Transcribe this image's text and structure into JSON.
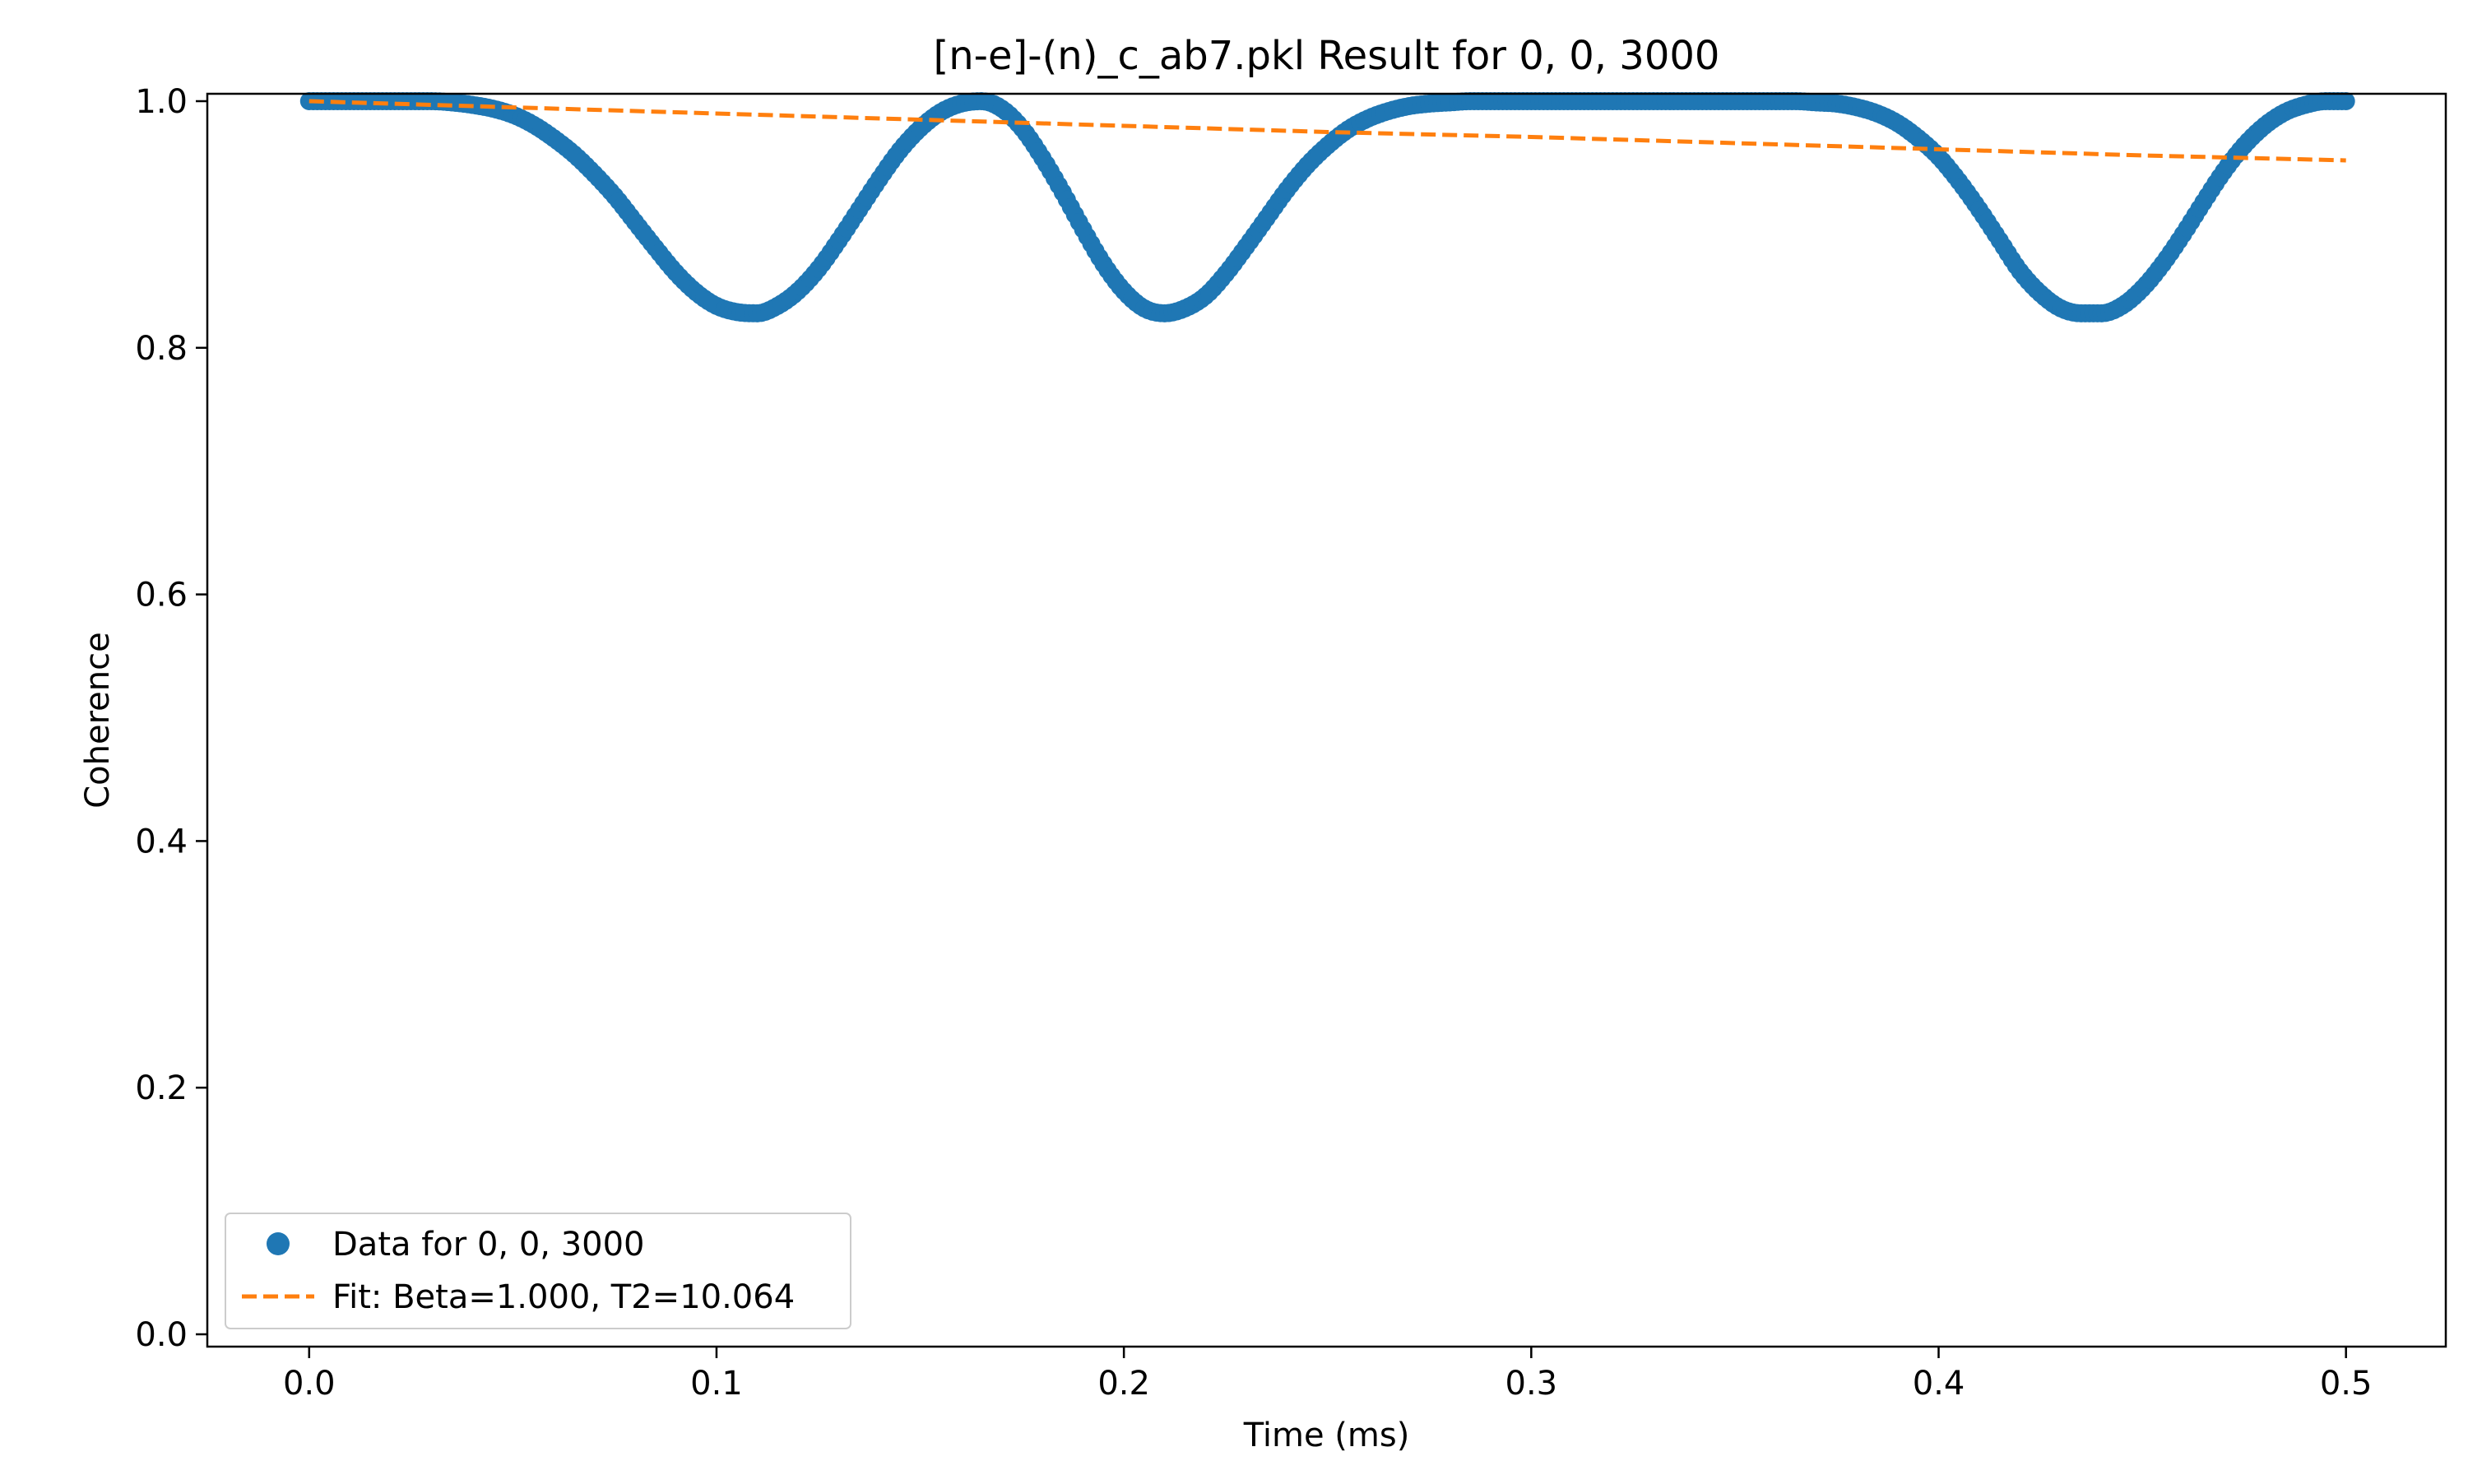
{
  "chart_data": {
    "type": "scatter",
    "title": "[n-e]-(n)_c_ab7.pkl Result for 0, 0, 3000",
    "xlabel": "Time (ms)",
    "ylabel": "Coherence",
    "xlim": [
      -0.025,
      0.5245
    ],
    "ylim": [
      -0.01,
      1.006
    ],
    "xticks": [
      0.0,
      0.1,
      0.2,
      0.3,
      0.4,
      0.5
    ],
    "xtick_labels": [
      "0.0",
      "0.1",
      "0.2",
      "0.3",
      "0.4",
      "0.5"
    ],
    "yticks": [
      0.0,
      0.2,
      0.4,
      0.6,
      0.8,
      1.0
    ],
    "ytick_labels": [
      "0.0",
      "0.2",
      "0.4",
      "0.6",
      "0.8",
      "1.0"
    ],
    "grid": false,
    "legend_position": "lower-left",
    "series": [
      {
        "name": "Data for 0, 0, 3000",
        "kind": "scatter",
        "color": "#1f77b4",
        "x": [
          0.0,
          0.005,
          0.01,
          0.015,
          0.02,
          0.025,
          0.03,
          0.035,
          0.04,
          0.045,
          0.05,
          0.055,
          0.06,
          0.065,
          0.07,
          0.075,
          0.08,
          0.085,
          0.09,
          0.095,
          0.1,
          0.105,
          0.11,
          0.115,
          0.12,
          0.125,
          0.13,
          0.135,
          0.14,
          0.145,
          0.15,
          0.155,
          0.16,
          0.165,
          0.17,
          0.175,
          0.18,
          0.185,
          0.19,
          0.195,
          0.2,
          0.205,
          0.21,
          0.215,
          0.22,
          0.225,
          0.23,
          0.235,
          0.24,
          0.245,
          0.25,
          0.255,
          0.26,
          0.265,
          0.27,
          0.275,
          0.28,
          0.285,
          0.29,
          0.295,
          0.3,
          0.305,
          0.31,
          0.315,
          0.32,
          0.325,
          0.33,
          0.335,
          0.34,
          0.345,
          0.35,
          0.355,
          0.36,
          0.365,
          0.37,
          0.375,
          0.38,
          0.385,
          0.39,
          0.395,
          0.4,
          0.405,
          0.41,
          0.415,
          0.42,
          0.425,
          0.43,
          0.435,
          0.44,
          0.445,
          0.45,
          0.455,
          0.46,
          0.465,
          0.47,
          0.475,
          0.48,
          0.485,
          0.49,
          0.495,
          0.5
        ],
        "y": [
          1.0,
          1.0,
          1.0,
          1.0,
          1.0,
          1.0,
          1.0,
          0.999,
          0.997,
          0.994,
          0.989,
          0.981,
          0.97,
          0.957,
          0.941,
          0.923,
          0.902,
          0.881,
          0.861,
          0.845,
          0.834,
          0.829,
          0.828,
          0.834,
          0.846,
          0.864,
          0.887,
          0.912,
          0.937,
          0.96,
          0.978,
          0.991,
          0.998,
          1.0,
          0.994,
          0.978,
          0.954,
          0.926,
          0.896,
          0.868,
          0.846,
          0.832,
          0.828,
          0.832,
          0.842,
          0.86,
          0.882,
          0.905,
          0.928,
          0.948,
          0.964,
          0.977,
          0.986,
          0.992,
          0.996,
          0.998,
          0.999,
          1.0,
          1.0,
          1.0,
          1.0,
          1.0,
          1.0,
          1.0,
          1.0,
          1.0,
          1.0,
          1.0,
          1.0,
          1.0,
          1.0,
          1.0,
          1.0,
          1.0,
          0.999,
          0.998,
          0.995,
          0.99,
          0.982,
          0.97,
          0.955,
          0.935,
          0.912,
          0.887,
          0.862,
          0.844,
          0.832,
          0.828,
          0.828,
          0.834,
          0.848,
          0.868,
          0.892,
          0.918,
          0.943,
          0.964,
          0.98,
          0.991,
          0.997,
          1.0,
          1.0
        ]
      },
      {
        "name": "Fit: Beta=1.000, T2=10.064",
        "kind": "line",
        "style": "dashed",
        "color": "#ff7f0e",
        "x": [
          0.0,
          0.05,
          0.1,
          0.15,
          0.2,
          0.25,
          0.3,
          0.35,
          0.4,
          0.45,
          0.5
        ],
        "y": [
          1.0,
          0.995,
          0.99,
          0.985,
          0.98,
          0.975,
          0.971,
          0.966,
          0.961,
          0.956,
          0.952
        ]
      }
    ]
  }
}
